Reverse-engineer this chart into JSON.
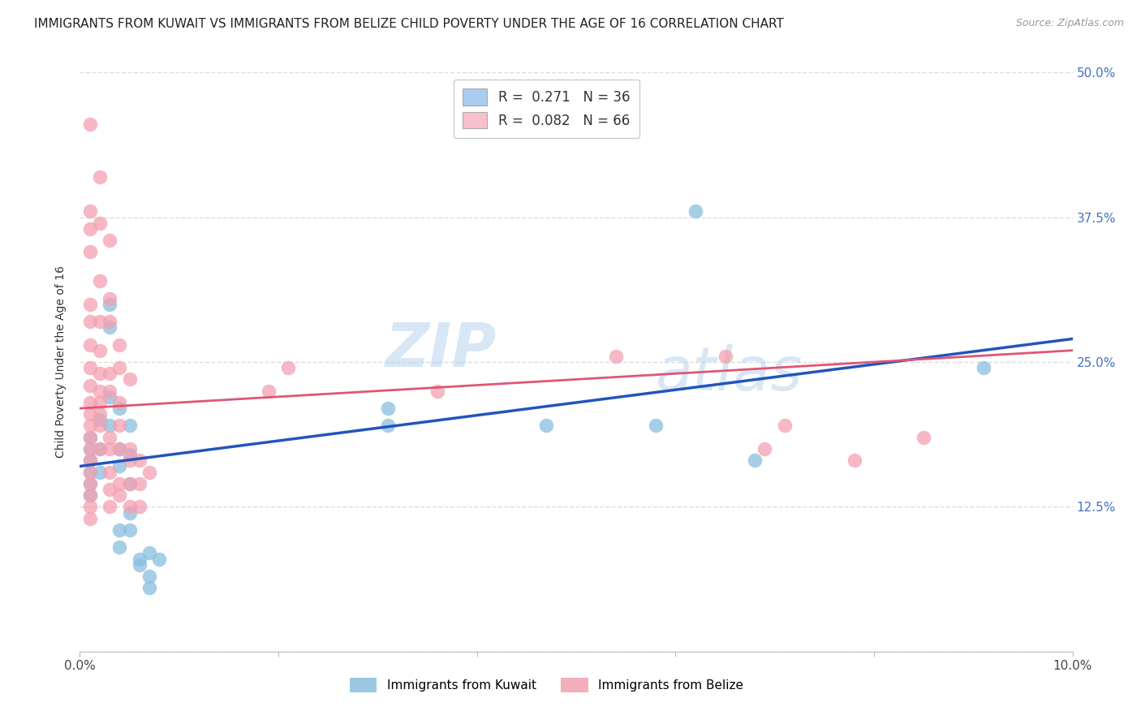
{
  "title": "IMMIGRANTS FROM KUWAIT VS IMMIGRANTS FROM BELIZE CHILD POVERTY UNDER THE AGE OF 16 CORRELATION CHART",
  "source": "Source: ZipAtlas.com",
  "ylabel": "Child Poverty Under the Age of 16",
  "xlim": [
    0.0,
    0.1
  ],
  "ylim": [
    0.0,
    0.5
  ],
  "xticks": [
    0.0,
    0.02,
    0.04,
    0.06,
    0.08,
    0.1
  ],
  "xticklabels": [
    "0.0%",
    "",
    "",
    "",
    "",
    "10.0%"
  ],
  "yticks": [
    0.0,
    0.125,
    0.25,
    0.375,
    0.5
  ],
  "yticklabels": [
    "",
    "12.5%",
    "25.0%",
    "37.5%",
    "50.0%"
  ],
  "watermark_zip": "ZIP",
  "watermark_atlas": "atlas",
  "kuwait_color": "#89bfdf",
  "belize_color": "#f4a0b0",
  "kuwait_line_color": "#2255bb",
  "belize_line_color": "#e05575",
  "background_color": "#ffffff",
  "grid_color": "#dddddd",
  "legend_box_kuwait": "#aaccee",
  "legend_box_belize": "#f8c0cc",
  "kuwait_points": [
    [
      0.001,
      0.175
    ],
    [
      0.001,
      0.155
    ],
    [
      0.001,
      0.185
    ],
    [
      0.001,
      0.145
    ],
    [
      0.001,
      0.135
    ],
    [
      0.001,
      0.165
    ],
    [
      0.002,
      0.2
    ],
    [
      0.002,
      0.175
    ],
    [
      0.002,
      0.155
    ],
    [
      0.003,
      0.3
    ],
    [
      0.003,
      0.28
    ],
    [
      0.003,
      0.22
    ],
    [
      0.003,
      0.195
    ],
    [
      0.004,
      0.21
    ],
    [
      0.004,
      0.175
    ],
    [
      0.004,
      0.16
    ],
    [
      0.004,
      0.105
    ],
    [
      0.004,
      0.09
    ],
    [
      0.005,
      0.195
    ],
    [
      0.005,
      0.17
    ],
    [
      0.005,
      0.145
    ],
    [
      0.005,
      0.12
    ],
    [
      0.005,
      0.105
    ],
    [
      0.006,
      0.08
    ],
    [
      0.006,
      0.075
    ],
    [
      0.007,
      0.085
    ],
    [
      0.007,
      0.065
    ],
    [
      0.007,
      0.055
    ],
    [
      0.008,
      0.08
    ],
    [
      0.031,
      0.21
    ],
    [
      0.031,
      0.195
    ],
    [
      0.047,
      0.195
    ],
    [
      0.062,
      0.38
    ],
    [
      0.091,
      0.245
    ],
    [
      0.058,
      0.195
    ],
    [
      0.068,
      0.165
    ]
  ],
  "belize_points": [
    [
      0.001,
      0.455
    ],
    [
      0.001,
      0.38
    ],
    [
      0.001,
      0.365
    ],
    [
      0.001,
      0.345
    ],
    [
      0.001,
      0.3
    ],
    [
      0.001,
      0.285
    ],
    [
      0.001,
      0.265
    ],
    [
      0.001,
      0.245
    ],
    [
      0.001,
      0.23
    ],
    [
      0.001,
      0.215
    ],
    [
      0.001,
      0.205
    ],
    [
      0.001,
      0.195
    ],
    [
      0.001,
      0.185
    ],
    [
      0.001,
      0.175
    ],
    [
      0.001,
      0.165
    ],
    [
      0.001,
      0.155
    ],
    [
      0.001,
      0.145
    ],
    [
      0.001,
      0.135
    ],
    [
      0.001,
      0.125
    ],
    [
      0.001,
      0.115
    ],
    [
      0.002,
      0.41
    ],
    [
      0.002,
      0.37
    ],
    [
      0.002,
      0.32
    ],
    [
      0.002,
      0.285
    ],
    [
      0.002,
      0.26
    ],
    [
      0.002,
      0.24
    ],
    [
      0.002,
      0.225
    ],
    [
      0.002,
      0.215
    ],
    [
      0.002,
      0.205
    ],
    [
      0.002,
      0.195
    ],
    [
      0.002,
      0.175
    ],
    [
      0.003,
      0.355
    ],
    [
      0.003,
      0.305
    ],
    [
      0.003,
      0.285
    ],
    [
      0.003,
      0.24
    ],
    [
      0.003,
      0.225
    ],
    [
      0.003,
      0.185
    ],
    [
      0.003,
      0.175
    ],
    [
      0.003,
      0.155
    ],
    [
      0.003,
      0.14
    ],
    [
      0.003,
      0.125
    ],
    [
      0.004,
      0.265
    ],
    [
      0.004,
      0.245
    ],
    [
      0.004,
      0.215
    ],
    [
      0.004,
      0.195
    ],
    [
      0.004,
      0.175
    ],
    [
      0.004,
      0.145
    ],
    [
      0.004,
      0.135
    ],
    [
      0.005,
      0.235
    ],
    [
      0.005,
      0.175
    ],
    [
      0.005,
      0.165
    ],
    [
      0.005,
      0.145
    ],
    [
      0.005,
      0.125
    ],
    [
      0.006,
      0.165
    ],
    [
      0.006,
      0.145
    ],
    [
      0.006,
      0.125
    ],
    [
      0.007,
      0.155
    ],
    [
      0.019,
      0.225
    ],
    [
      0.021,
      0.245
    ],
    [
      0.036,
      0.225
    ],
    [
      0.054,
      0.255
    ],
    [
      0.065,
      0.255
    ],
    [
      0.069,
      0.175
    ],
    [
      0.071,
      0.195
    ],
    [
      0.078,
      0.165
    ],
    [
      0.085,
      0.185
    ]
  ],
  "kuwait_line_x": [
    0.0,
    0.1
  ],
  "kuwait_line_y": [
    0.16,
    0.27
  ],
  "belize_line_x": [
    0.0,
    0.1
  ],
  "belize_line_y": [
    0.21,
    0.26
  ],
  "title_fontsize": 11,
  "tick_fontsize": 11,
  "legend_fontsize": 12
}
